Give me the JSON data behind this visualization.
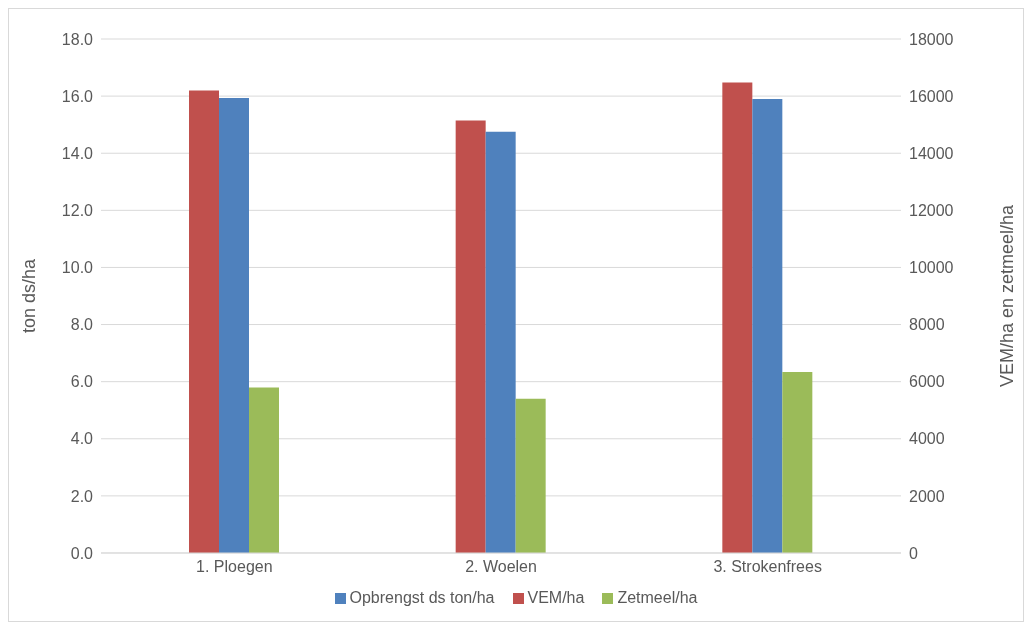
{
  "chart_data": {
    "type": "bar",
    "ylabel": "ton ds/ha",
    "y2label": "VEM/ha en zetmeel/ha",
    "categories": [
      "1. Ploegen",
      "2. Woelen",
      "3. Strokenfrees"
    ],
    "series": [
      {
        "name": "VEM/ha",
        "color": "#c0504d",
        "axis": "y2",
        "values": [
          16200,
          15150,
          16480
        ]
      },
      {
        "name": "Opbrengst ds ton/ha",
        "color": "#4f81bd",
        "axis": "y",
        "values": [
          15.93,
          14.75,
          15.9
        ]
      },
      {
        "name": "Zetmeel/ha",
        "color": "#9bbb59",
        "axis": "y2",
        "values": [
          5800,
          5400,
          6340
        ]
      }
    ],
    "ylim": [
      0,
      18
    ],
    "yticks": [
      {
        "value": 0,
        "label": "0.0"
      },
      {
        "value": 2,
        "label": "2.0"
      },
      {
        "value": 4,
        "label": "4.0"
      },
      {
        "value": 6,
        "label": "6.0"
      },
      {
        "value": 8,
        "label": "8.0"
      },
      {
        "value": 10,
        "label": "10.0"
      },
      {
        "value": 12,
        "label": "12.0"
      },
      {
        "value": 14,
        "label": "14.0"
      },
      {
        "value": 16,
        "label": "16.0"
      },
      {
        "value": 18,
        "label": "18.0"
      }
    ],
    "y2lim": [
      0,
      18000
    ],
    "y2ticks": [
      0,
      2000,
      4000,
      6000,
      8000,
      10000,
      12000,
      14000,
      16000,
      18000
    ],
    "grid": "y",
    "legend": "bottom"
  }
}
